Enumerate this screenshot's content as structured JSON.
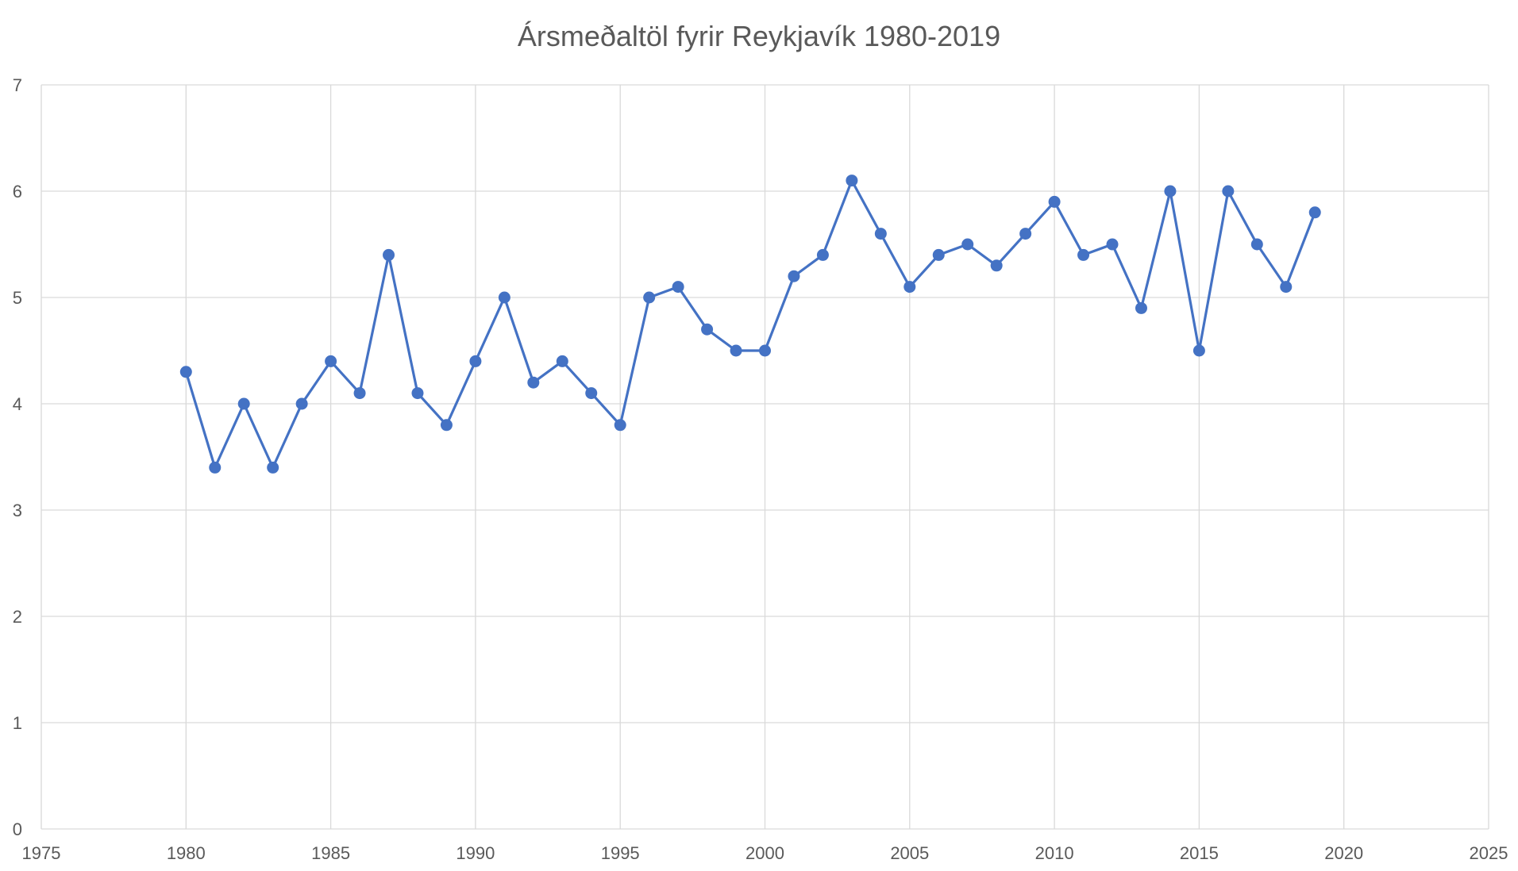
{
  "chart_data": {
    "type": "line",
    "title": "Ársmeðaltöl fyrir Reykjavík 1980-2019",
    "xlabel": "",
    "ylabel": "",
    "xlim": [
      1975,
      2025
    ],
    "ylim": [
      0,
      7
    ],
    "x_ticks": [
      1975,
      1980,
      1985,
      1990,
      1995,
      2000,
      2005,
      2010,
      2015,
      2020,
      2025
    ],
    "y_ticks": [
      0,
      1,
      2,
      3,
      4,
      5,
      6,
      7
    ],
    "grid": true,
    "legend": "none",
    "colors": {
      "series": "#4472c4",
      "grid": "#d9d9d9",
      "text": "#595959"
    },
    "series": [
      {
        "x": [
          1980,
          1981,
          1982,
          1983,
          1984,
          1985,
          1986,
          1987,
          1988,
          1989,
          1990,
          1991,
          1992,
          1993,
          1994,
          1995,
          1996,
          1997,
          1998,
          1999,
          2000,
          2001,
          2002,
          2003,
          2004,
          2005,
          2006,
          2007,
          2008,
          2009,
          2010,
          2011,
          2012,
          2013,
          2014,
          2015,
          2016,
          2017,
          2018,
          2019
        ],
        "y": [
          4.3,
          3.4,
          4.0,
          3.4,
          4.0,
          4.4,
          4.1,
          5.4,
          4.1,
          3.8,
          4.4,
          5.0,
          4.2,
          4.4,
          4.1,
          3.8,
          5.0,
          5.1,
          4.7,
          4.5,
          4.5,
          5.2,
          5.4,
          6.1,
          5.6,
          5.1,
          5.4,
          5.5,
          5.3,
          5.6,
          5.9,
          5.4,
          5.5,
          4.9,
          6.0,
          4.5,
          6.0,
          5.5,
          5.1,
          5.8
        ]
      }
    ]
  }
}
